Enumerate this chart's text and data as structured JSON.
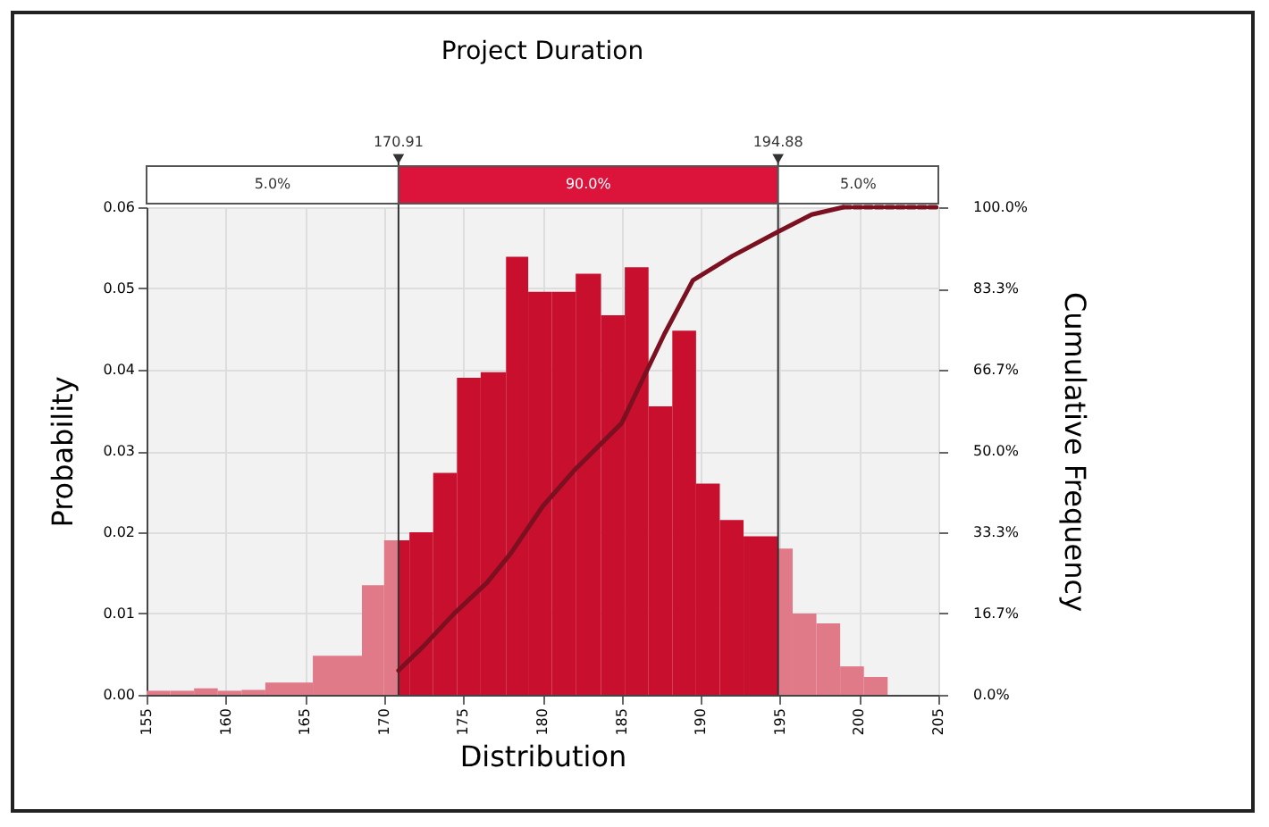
{
  "chart_data": {
    "type": "histogram",
    "title": "Project Duration",
    "xlabel": "Distribution",
    "ylabel": "Probability",
    "y2label": "Cumulative Frequency",
    "bins": [
      155,
      156.5,
      158,
      159.5,
      161,
      162.5,
      165.5,
      168.6,
      170.0,
      170.91,
      171.6,
      173.1,
      174.6,
      176.1,
      177.7,
      179.1,
      180.6,
      182.1,
      183.7,
      185.2,
      186.7,
      188.2,
      189.7,
      191.2,
      192.7,
      194.88,
      195.8,
      197.3,
      198.8,
      200.3,
      201.8
    ],
    "values": [
      0.0005,
      0.0005,
      0.0008,
      0.0005,
      0.0006,
      0.0015,
      0.0048,
      0.0135,
      0.019,
      0.019,
      0.02,
      0.0273,
      0.039,
      0.0397,
      0.0539,
      0.0496,
      0.0496,
      0.0518,
      0.0467,
      0.0526,
      0.0355,
      0.0448,
      0.026,
      0.0215,
      0.0195,
      0.018,
      0.01,
      0.0088,
      0.0035,
      0.0022
    ],
    "colors": [
      "#e07a88",
      "#e07a88",
      "#e07a88",
      "#e07a88",
      "#e07a88",
      "#e07a88",
      "#e07a88",
      "#e07a88",
      "#e07a88",
      "#c8102e",
      "#c8102e",
      "#c8102e",
      "#c8102e",
      "#c8102e",
      "#c8102e",
      "#c8102e",
      "#c8102e",
      "#c8102e",
      "#c8102e",
      "#c8102e",
      "#c8102e",
      "#c8102e",
      "#c8102e",
      "#c8102e",
      "#c8102e",
      "#e07a88",
      "#e07a88",
      "#e07a88",
      "#e07a88",
      "#e07a88"
    ],
    "series": [
      {
        "type": "line",
        "axis": "y2",
        "color": "#7a1020",
        "line_style": "solid",
        "x": [
          170.91,
          172.5,
          174.4,
          176.5,
          178,
          180,
          182,
          185,
          187.7,
          189.5,
          192,
          194.9,
          197,
          199
        ],
        "values": [
          5,
          10,
          16.6,
          23,
          29,
          38.6,
          46,
          55.7,
          74,
          85,
          90,
          95,
          98.5,
          100
        ]
      },
      {
        "type": "line",
        "axis": "y2",
        "color": "#7a1020",
        "line_style": "dashed",
        "x": [
          199,
          205
        ],
        "values": [
          100,
          100
        ]
      }
    ],
    "xlim": [
      155,
      205
    ],
    "xticks": [
      155,
      160,
      165,
      170,
      175,
      180,
      185,
      190,
      195,
      200,
      205
    ],
    "ylim": [
      0,
      0.06
    ],
    "yticks": [
      {
        "value": 0,
        "label": "0.00"
      },
      {
        "value": 0.01,
        "label": "0.01"
      },
      {
        "value": 0.02,
        "label": "0.02"
      },
      {
        "value": 0.03,
        "label": "0.03"
      },
      {
        "value": 0.04,
        "label": "0.04"
      },
      {
        "value": 0.05,
        "label": "0.05"
      },
      {
        "value": 0.06,
        "label": "0.06"
      }
    ],
    "y2lim": [
      0,
      100
    ],
    "y2ticks": [
      {
        "value": 0,
        "label": "0.0%"
      },
      {
        "value": 16.7,
        "label": "16.7%"
      },
      {
        "value": 33.3,
        "label": "33.3%"
      },
      {
        "value": 50,
        "label": "50.0%"
      },
      {
        "value": 66.7,
        "label": "66.7%"
      },
      {
        "value": 83.3,
        "label": "83.3%"
      },
      {
        "value": 100,
        "label": "100.0%"
      }
    ],
    "ref_lines": [
      {
        "axis": "x",
        "value": 170.91,
        "label": "170.91"
      },
      {
        "axis": "x",
        "value": 194.88,
        "label": "194.88"
      }
    ],
    "annotations": [
      "5.0%",
      "90.0%",
      "5.0%"
    ],
    "grid": true
  }
}
